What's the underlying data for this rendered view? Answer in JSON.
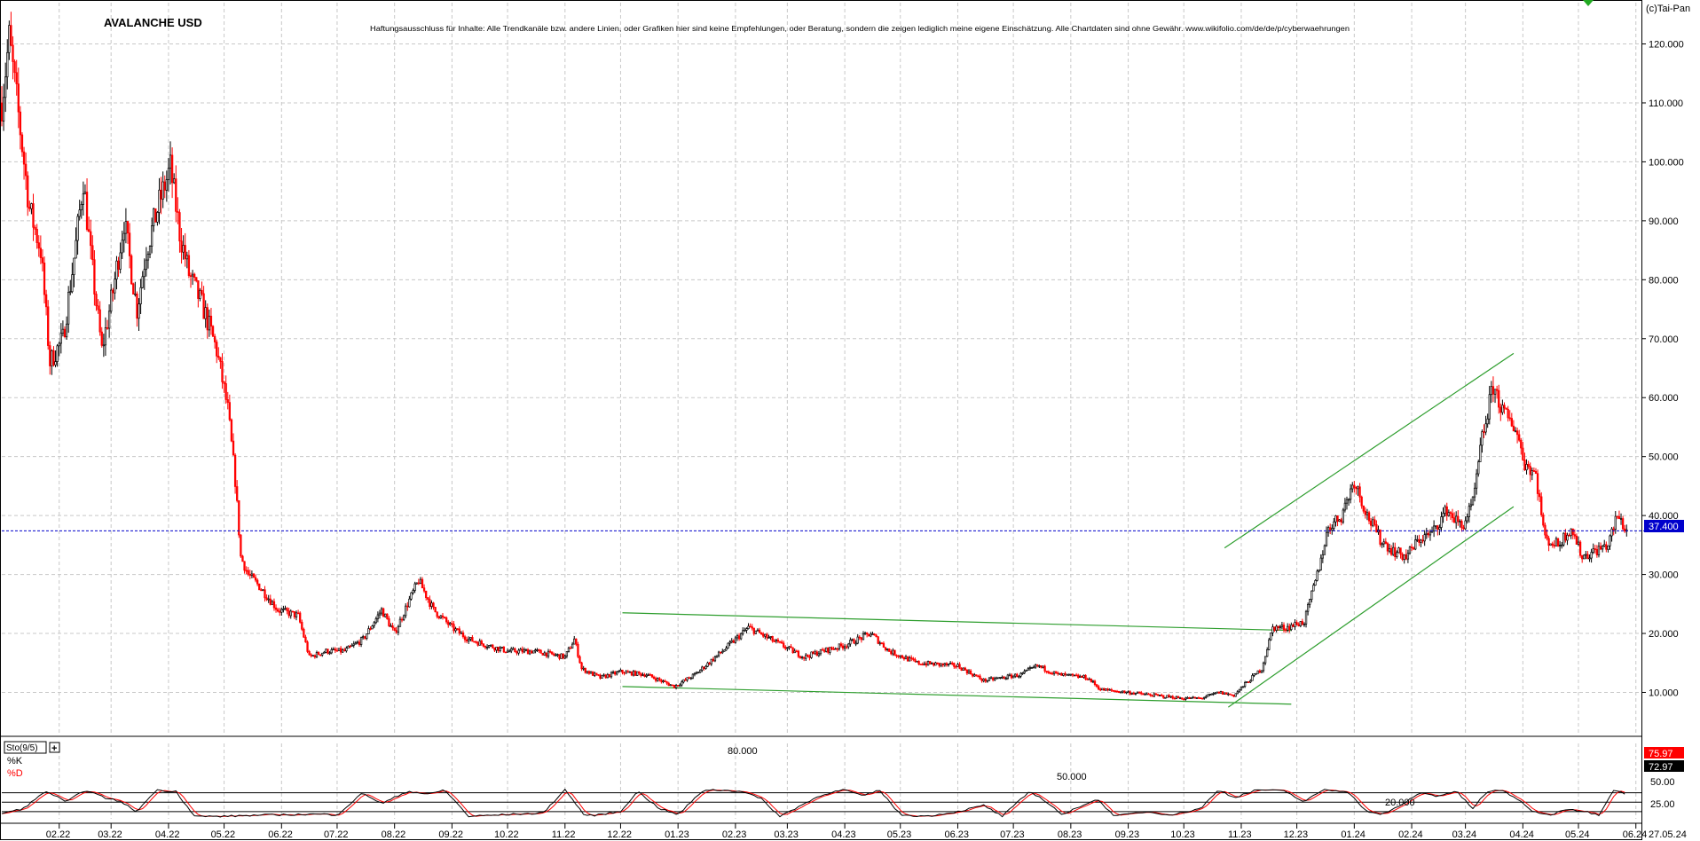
{
  "header": {
    "title": "AVALANCHE USD",
    "disclaimer": "Haftungsausschluss für Inhalte: Alle Trendkanäle bzw. andere Linien, oder Grafiken hier sind keine Empfehlungen, oder Beratung, sondern die zeigen lediglich meine eigene Einschätzung. Alle Chartdaten sind ohne Gewähr. www.wikifolio.com/de/de/p/cyberwaehrungen",
    "copyright": "(c)Tai-Pan"
  },
  "colors": {
    "background": "#ffffff",
    "grid": "#c8c8c8",
    "up_candle": "#000000",
    "down_candle": "#ff0000",
    "trendline": "#2e9e2e",
    "last_price_line": "#0000cc",
    "last_price_tag": "#0000cc",
    "k_line": "#000000",
    "d_line": "#ff0000",
    "k_tag": "#ff0000"
  },
  "price_panel": {
    "y_ticks": [
      "120.000",
      "110.000",
      "100.000",
      "90.000",
      "80.000",
      "70.000",
      "60.000",
      "50.000",
      "40.000",
      "30.000",
      "20.000",
      "10.000"
    ],
    "last_price": "37.400"
  },
  "stoch_panel": {
    "label": "Sto(9/5)",
    "k_label": "%K",
    "d_label": "%D",
    "levels": [
      "80.000",
      "50.000",
      "20.000"
    ],
    "right_ticks": [
      "50.00",
      "25.00"
    ],
    "k_value": "75.97",
    "d_value": "72.97"
  },
  "x_axis": {
    "labels": [
      "02.22",
      "03.22",
      "04.22",
      "05.22",
      "06.22",
      "07.22",
      "08.22",
      "09.22",
      "10.22",
      "11.22",
      "12.22",
      "01.23",
      "02.23",
      "03.23",
      "04.23",
      "05.23",
      "06.23",
      "07.23",
      "08.23",
      "09.23",
      "10.23",
      "11.23",
      "12.23",
      "01.24",
      "02.24",
      "03.24",
      "04.24",
      "05.24",
      "06.24",
      "27.05.24"
    ]
  },
  "chart_data": {
    "type": "candlestick",
    "title": "AVALANCHE USD",
    "ylim": [
      3,
      127
    ],
    "last_price": 37.4,
    "price_anchors": [
      [
        "2022-01-01",
        110
      ],
      [
        "2022-01-05",
        121
      ],
      [
        "2022-01-10",
        108
      ],
      [
        "2022-01-16",
        92
      ],
      [
        "2022-01-22",
        85
      ],
      [
        "2022-01-27",
        66
      ],
      [
        "2022-02-03",
        70
      ],
      [
        "2022-02-10",
        86
      ],
      [
        "2022-02-14",
        97
      ],
      [
        "2022-02-18",
        84
      ],
      [
        "2022-02-24",
        68
      ],
      [
        "2022-03-02",
        78
      ],
      [
        "2022-03-08",
        90
      ],
      [
        "2022-03-15",
        75
      ],
      [
        "2022-03-20",
        85
      ],
      [
        "2022-03-27",
        93
      ],
      [
        "2022-04-02",
        99
      ],
      [
        "2022-04-07",
        88
      ],
      [
        "2022-04-12",
        81
      ],
      [
        "2022-04-20",
        75
      ],
      [
        "2022-04-27",
        68
      ],
      [
        "2022-05-03",
        58
      ],
      [
        "2022-05-07",
        46
      ],
      [
        "2022-05-10",
        33
      ],
      [
        "2022-05-14",
        30
      ],
      [
        "2022-05-20",
        28
      ],
      [
        "2022-05-30",
        24
      ],
      [
        "2022-06-10",
        23
      ],
      [
        "2022-06-16",
        16
      ],
      [
        "2022-06-25",
        17
      ],
      [
        "2022-07-05",
        17
      ],
      [
        "2022-07-15",
        19
      ],
      [
        "2022-07-25",
        24
      ],
      [
        "2022-08-01",
        20
      ],
      [
        "2022-08-08",
        25
      ],
      [
        "2022-08-14",
        29
      ],
      [
        "2022-08-22",
        24
      ],
      [
        "2022-09-01",
        21
      ],
      [
        "2022-09-10",
        19
      ],
      [
        "2022-09-20",
        18
      ],
      [
        "2022-10-01",
        17
      ],
      [
        "2022-10-15",
        17
      ],
      [
        "2022-11-01",
        16
      ],
      [
        "2022-11-06",
        19
      ],
      [
        "2022-11-10",
        14
      ],
      [
        "2022-11-20",
        12.5
      ],
      [
        "2022-12-01",
        13.5
      ],
      [
        "2022-12-15",
        13
      ],
      [
        "2022-12-30",
        11
      ],
      [
        "2023-01-10",
        13
      ],
      [
        "2023-01-25",
        17
      ],
      [
        "2023-02-08",
        21
      ],
      [
        "2023-02-20",
        19
      ],
      [
        "2023-03-10",
        16
      ],
      [
        "2023-03-20",
        17
      ],
      [
        "2023-04-01",
        18
      ],
      [
        "2023-04-15",
        20
      ],
      [
        "2023-04-25",
        17
      ],
      [
        "2023-05-10",
        15
      ],
      [
        "2023-06-01",
        14.5
      ],
      [
        "2023-06-15",
        12
      ],
      [
        "2023-06-25",
        12.5
      ],
      [
        "2023-07-05",
        13
      ],
      [
        "2023-07-14",
        14.5
      ],
      [
        "2023-07-25",
        13
      ],
      [
        "2023-08-10",
        12.5
      ],
      [
        "2023-08-17",
        10.5
      ],
      [
        "2023-09-01",
        10
      ],
      [
        "2023-09-15",
        9.5
      ],
      [
        "2023-10-01",
        9
      ],
      [
        "2023-10-10",
        9
      ],
      [
        "2023-10-20",
        10
      ],
      [
        "2023-10-28",
        9.5
      ],
      [
        "2023-11-05",
        12
      ],
      [
        "2023-11-12",
        14
      ],
      [
        "2023-11-18",
        21
      ],
      [
        "2023-11-25",
        21
      ],
      [
        "2023-12-05",
        22
      ],
      [
        "2023-12-12",
        30
      ],
      [
        "2023-12-18",
        38
      ],
      [
        "2023-12-25",
        40
      ],
      [
        "2024-01-01",
        46
      ],
      [
        "2024-01-08",
        40
      ],
      [
        "2024-01-15",
        36
      ],
      [
        "2024-01-22",
        34
      ],
      [
        "2024-01-29",
        33
      ],
      [
        "2024-02-05",
        36
      ],
      [
        "2024-02-12",
        37
      ],
      [
        "2024-02-20",
        41
      ],
      [
        "2024-02-28",
        38
      ],
      [
        "2024-03-05",
        42
      ],
      [
        "2024-03-10",
        53
      ],
      [
        "2024-03-16",
        62
      ],
      [
        "2024-03-22",
        57
      ],
      [
        "2024-03-28",
        55
      ],
      [
        "2024-04-02",
        49
      ],
      [
        "2024-04-08",
        47
      ],
      [
        "2024-04-13",
        36
      ],
      [
        "2024-04-20",
        35
      ],
      [
        "2024-04-27",
        38
      ],
      [
        "2024-05-03",
        33
      ],
      [
        "2024-05-10",
        34
      ],
      [
        "2024-05-17",
        35
      ],
      [
        "2024-05-22",
        40
      ],
      [
        "2024-05-27",
        37.4
      ]
    ],
    "trendlines": [
      {
        "from": [
          "2022-12-02",
          23.5
        ],
        "to": [
          "2023-11-28",
          20.5
        ]
      },
      {
        "from": [
          "2022-12-02",
          11
        ],
        "to": [
          "2023-11-28",
          8
        ]
      },
      {
        "from": [
          "2023-10-23",
          34.5
        ],
        "to": [
          "2024-03-27",
          67.5
        ]
      },
      {
        "from": [
          "2023-10-25",
          7.5
        ],
        "to": [
          "2024-03-27",
          41.5
        ]
      }
    ],
    "stochastic": {
      "name": "Sto(9/5)",
      "k_last": 75.97,
      "d_last": 72.97,
      "levels": [
        80,
        50,
        20
      ],
      "k_anchors": [
        [
          "2022-01-01",
          15
        ],
        [
          "2022-01-12",
          28
        ],
        [
          "2022-01-25",
          85
        ],
        [
          "2022-02-05",
          50
        ],
        [
          "2022-02-15",
          90
        ],
        [
          "2022-02-25",
          65
        ],
        [
          "2022-03-05",
          55
        ],
        [
          "2022-03-15",
          20
        ],
        [
          "2022-03-25",
          88
        ],
        [
          "2022-04-05",
          85
        ],
        [
          "2022-04-15",
          5
        ],
        [
          "2022-05-01",
          5
        ],
        [
          "2022-05-15",
          8
        ],
        [
          "2022-06-01",
          10
        ],
        [
          "2022-06-20",
          12
        ],
        [
          "2022-07-01",
          10
        ],
        [
          "2022-07-15",
          80
        ],
        [
          "2022-07-25",
          45
        ],
        [
          "2022-08-08",
          85
        ],
        [
          "2022-08-20",
          75
        ],
        [
          "2022-08-28",
          90
        ],
        [
          "2022-09-10",
          5
        ],
        [
          "2022-10-05",
          12
        ],
        [
          "2022-10-20",
          15
        ],
        [
          "2022-11-01",
          90
        ],
        [
          "2022-11-12",
          5
        ],
        [
          "2022-12-01",
          20
        ],
        [
          "2022-12-10",
          85
        ],
        [
          "2022-12-22",
          30
        ],
        [
          "2023-01-01",
          10
        ],
        [
          "2023-01-15",
          90
        ],
        [
          "2023-02-05",
          85
        ],
        [
          "2023-02-15",
          60
        ],
        [
          "2023-02-25",
          5
        ],
        [
          "2023-03-10",
          45
        ],
        [
          "2023-03-20",
          75
        ],
        [
          "2023-04-01",
          90
        ],
        [
          "2023-04-10",
          70
        ],
        [
          "2023-04-20",
          88
        ],
        [
          "2023-05-01",
          10
        ],
        [
          "2023-05-15",
          5
        ],
        [
          "2023-06-01",
          20
        ],
        [
          "2023-06-15",
          40
        ],
        [
          "2023-06-25",
          5
        ],
        [
          "2023-07-10",
          85
        ],
        [
          "2023-07-18",
          55
        ],
        [
          "2023-07-28",
          8
        ],
        [
          "2023-08-05",
          35
        ],
        [
          "2023-08-15",
          60
        ],
        [
          "2023-08-25",
          5
        ],
        [
          "2023-09-10",
          20
        ],
        [
          "2023-09-25",
          10
        ],
        [
          "2023-10-10",
          30
        ],
        [
          "2023-10-20",
          90
        ],
        [
          "2023-10-28",
          65
        ],
        [
          "2023-11-10",
          90
        ],
        [
          "2023-11-25",
          85
        ],
        [
          "2023-12-05",
          50
        ],
        [
          "2023-12-15",
          90
        ],
        [
          "2023-12-28",
          85
        ],
        [
          "2024-01-08",
          20
        ],
        [
          "2024-01-15",
          10
        ],
        [
          "2024-01-25",
          35
        ],
        [
          "2024-02-05",
          80
        ],
        [
          "2024-02-15",
          70
        ],
        [
          "2024-02-25",
          85
        ],
        [
          "2024-03-05",
          30
        ],
        [
          "2024-03-12",
          80
        ],
        [
          "2024-03-20",
          90
        ],
        [
          "2024-03-28",
          65
        ],
        [
          "2024-04-05",
          25
        ],
        [
          "2024-04-15",
          8
        ],
        [
          "2024-04-25",
          30
        ],
        [
          "2024-05-05",
          20
        ],
        [
          "2024-05-12",
          10
        ],
        [
          "2024-05-20",
          90
        ],
        [
          "2024-05-27",
          75.97
        ]
      ]
    }
  }
}
